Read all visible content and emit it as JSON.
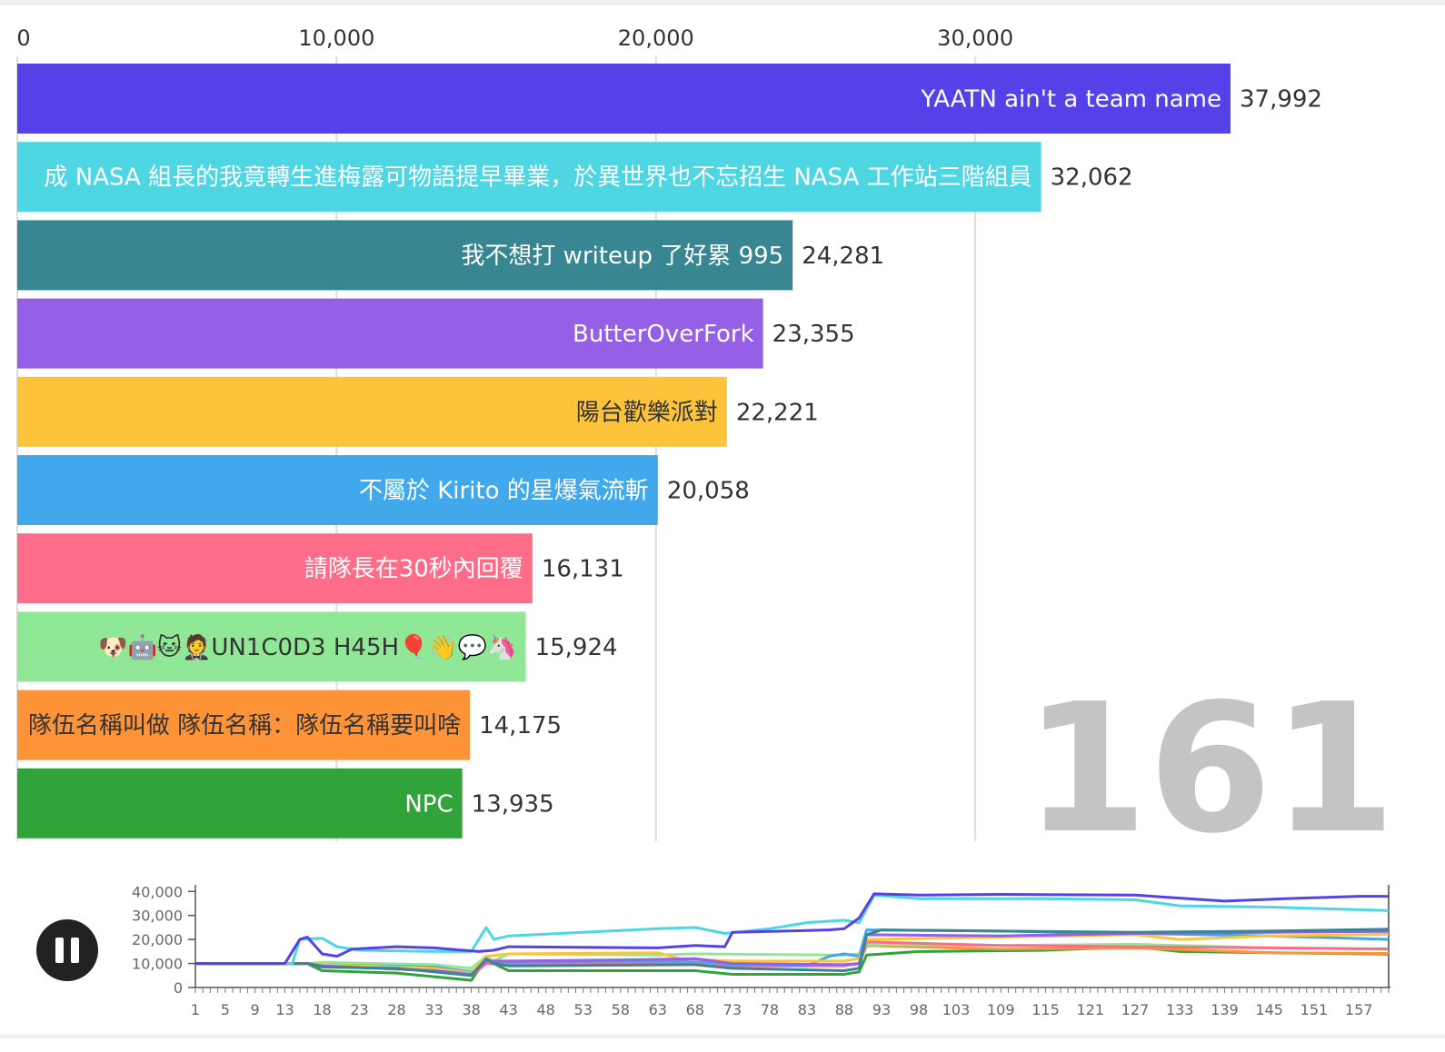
{
  "chart_data": [
    {
      "type": "bar",
      "orientation": "horizontal",
      "xticks": [
        0,
        10000,
        20000,
        30000
      ],
      "xtick_labels": [
        "0",
        "10,000",
        "20,000",
        "30,000"
      ],
      "xlim": [
        0,
        38000
      ],
      "grid": true,
      "frame_label": "161",
      "bars": [
        {
          "name": "YAATN ain't a team name",
          "value": 37992,
          "label": "37,992",
          "color": "#5442e8"
        },
        {
          "name": "成 NASA 組長的我竟轉生進梅露可物語提早畢業，於異世界也不忘招生 NASA 工作站三階組員",
          "value": 32062,
          "label": "32,062",
          "color": "#4fd6e3"
        },
        {
          "name": "我不想打 writeup 了好累 995",
          "value": 24281,
          "label": "24,281",
          "color": "#378692"
        },
        {
          "name": "ButterOverFork",
          "value": 23355,
          "label": "23,355",
          "color": "#955fe6"
        },
        {
          "name": "陽台歡樂派對",
          "value": 22221,
          "label": "22,221",
          "color": "#fdc33b"
        },
        {
          "name": "不屬於 Kirito 的星爆氣流斬",
          "value": 20058,
          "label": "20,058",
          "color": "#41a8ec"
        },
        {
          "name": "請隊長在30秒內回覆",
          "value": 16131,
          "label": "16,131",
          "color": "#fd6c89"
        },
        {
          "name": "🐶🤖🐱🤵UN1C0D3 H45H🎈👋💬🦄",
          "value": 15924,
          "label": "15,924",
          "color": "#90e897"
        },
        {
          "name": "隊伍名稱叫做 隊伍名稱：隊伍名稱要叫啥",
          "value": 14175,
          "label": "14,175",
          "color": "#fe9338"
        },
        {
          "name": "NPC",
          "value": 13935,
          "label": "13,935",
          "color": "#30a43a"
        }
      ]
    },
    {
      "type": "line",
      "yticks": [
        0,
        10000,
        20000,
        30000,
        40000
      ],
      "ytick_labels": [
        "0",
        "10,000",
        "20,000",
        "30,000",
        "40,000"
      ],
      "ylim": [
        0,
        42000
      ],
      "xlim": [
        1,
        161
      ],
      "xticks": [
        1,
        5,
        9,
        13,
        18,
        23,
        28,
        33,
        38,
        43,
        48,
        53,
        58,
        63,
        68,
        73,
        78,
        83,
        88,
        93,
        98,
        103,
        109,
        115,
        121,
        127,
        133,
        139,
        145,
        151,
        157
      ],
      "xtick_labels": [
        "1",
        "5",
        "9",
        "13",
        "18",
        "23",
        "28",
        "33",
        "38",
        "43",
        "48",
        "53",
        "58",
        "63",
        "68",
        "73",
        "78",
        "83",
        "88",
        "93",
        "98",
        "103",
        "109",
        "115",
        "121",
        "127",
        "133",
        "139",
        "145",
        "151",
        "157"
      ],
      "current_frame": 161,
      "series": [
        {
          "color": "#5442e8",
          "points": [
            [
              1,
              10000
            ],
            [
              13,
              10000
            ],
            [
              15,
              20000
            ],
            [
              16,
              21000
            ],
            [
              18,
              14000
            ],
            [
              20,
              13000
            ],
            [
              22,
              16000
            ],
            [
              28,
              17000
            ],
            [
              33,
              16500
            ],
            [
              39,
              15000
            ],
            [
              41,
              15500
            ],
            [
              43,
              17000
            ],
            [
              63,
              16500
            ],
            [
              68,
              17500
            ],
            [
              72,
              17000
            ],
            [
              73,
              23000
            ],
            [
              80,
              23500
            ],
            [
              86,
              24000
            ],
            [
              88,
              24500
            ],
            [
              90,
              29000
            ],
            [
              92,
              39000
            ],
            [
              98,
              38500
            ],
            [
              109,
              38800
            ],
            [
              127,
              38500
            ],
            [
              139,
              36000
            ],
            [
              147,
              37000
            ],
            [
              157,
              38000
            ],
            [
              161,
              38000
            ]
          ]
        },
        {
          "color": "#4fd6e3",
          "points": [
            [
              1,
              10000
            ],
            [
              14,
              10000
            ],
            [
              15,
              20000
            ],
            [
              18,
              20500
            ],
            [
              20,
              17000
            ],
            [
              23,
              15500
            ],
            [
              33,
              15000
            ],
            [
              38,
              15000
            ],
            [
              40,
              25000
            ],
            [
              41,
              20000
            ],
            [
              43,
              21500
            ],
            [
              53,
              23000
            ],
            [
              63,
              24500
            ],
            [
              68,
              25000
            ],
            [
              72,
              22500
            ],
            [
              78,
              24500
            ],
            [
              83,
              27000
            ],
            [
              88,
              28000
            ],
            [
              90,
              27000
            ],
            [
              92,
              38500
            ],
            [
              98,
              37000
            ],
            [
              115,
              37000
            ],
            [
              127,
              36500
            ],
            [
              133,
              34000
            ],
            [
              145,
              33500
            ],
            [
              161,
              32000
            ]
          ]
        },
        {
          "color": "#378692",
          "points": [
            [
              1,
              10000
            ],
            [
              16,
              10000
            ],
            [
              18,
              8500
            ],
            [
              28,
              8000
            ],
            [
              33,
              6500
            ],
            [
              38,
              5000
            ],
            [
              40,
              12000
            ],
            [
              41,
              10000
            ],
            [
              43,
              9000
            ],
            [
              68,
              9500
            ],
            [
              73,
              8000
            ],
            [
              88,
              7000
            ],
            [
              90,
              8000
            ],
            [
              91,
              22000
            ],
            [
              93,
              24000
            ],
            [
              109,
              23500
            ],
            [
              127,
              23000
            ],
            [
              145,
              23500
            ],
            [
              161,
              24300
            ]
          ]
        },
        {
          "color": "#955fe6",
          "points": [
            [
              1,
              10000
            ],
            [
              16,
              10000
            ],
            [
              18,
              9000
            ],
            [
              33,
              7000
            ],
            [
              38,
              5500
            ],
            [
              40,
              11000
            ],
            [
              43,
              11000
            ],
            [
              58,
              11500
            ],
            [
              68,
              12000
            ],
            [
              73,
              10000
            ],
            [
              88,
              9500
            ],
            [
              90,
              10000
            ],
            [
              91,
              22000
            ],
            [
              109,
              21500
            ],
            [
              127,
              22500
            ],
            [
              145,
              23000
            ],
            [
              161,
              23400
            ]
          ]
        },
        {
          "color": "#fdc33b",
          "points": [
            [
              1,
              10000
            ],
            [
              16,
              10000
            ],
            [
              18,
              9500
            ],
            [
              33,
              8000
            ],
            [
              38,
              6000
            ],
            [
              40,
              13000
            ],
            [
              43,
              14000
            ],
            [
              63,
              14500
            ],
            [
              66,
              12000
            ],
            [
              73,
              11000
            ],
            [
              88,
              11000
            ],
            [
              90,
              12000
            ],
            [
              91,
              20000
            ],
            [
              109,
              21000
            ],
            [
              127,
              22000
            ],
            [
              133,
              20000
            ],
            [
              145,
              21500
            ],
            [
              161,
              22200
            ]
          ]
        },
        {
          "color": "#41a8ec",
          "points": [
            [
              1,
              10000
            ],
            [
              16,
              10000
            ],
            [
              18,
              9500
            ],
            [
              33,
              8500
            ],
            [
              38,
              6500
            ],
            [
              40,
              11000
            ],
            [
              43,
              10500
            ],
            [
              68,
              11000
            ],
            [
              73,
              9500
            ],
            [
              83,
              9000
            ],
            [
              86,
              13000
            ],
            [
              88,
              14000
            ],
            [
              90,
              13000
            ],
            [
              91,
              24000
            ],
            [
              109,
              23500
            ],
            [
              127,
              22500
            ],
            [
              145,
              21500
            ],
            [
              161,
              20000
            ]
          ]
        },
        {
          "color": "#fd6c89",
          "points": [
            [
              1,
              10000
            ],
            [
              16,
              10000
            ],
            [
              18,
              9000
            ],
            [
              33,
              7000
            ],
            [
              38,
              5000
            ],
            [
              40,
              10000
            ],
            [
              43,
              9500
            ],
            [
              68,
              10000
            ],
            [
              73,
              9000
            ],
            [
              88,
              9000
            ],
            [
              90,
              10000
            ],
            [
              91,
              19000
            ],
            [
              109,
              17500
            ],
            [
              127,
              17000
            ],
            [
              145,
              16500
            ],
            [
              161,
              16100
            ]
          ]
        },
        {
          "color": "#90e897",
          "points": [
            [
              1,
              10000
            ],
            [
              16,
              10000
            ],
            [
              18,
              10500
            ],
            [
              33,
              9500
            ],
            [
              38,
              8000
            ],
            [
              40,
              13000
            ],
            [
              41,
              11000
            ],
            [
              43,
              14000
            ],
            [
              63,
              13500
            ],
            [
              68,
              14000
            ],
            [
              88,
              13500
            ],
            [
              90,
              14000
            ],
            [
              91,
              18000
            ],
            [
              109,
              17500
            ],
            [
              127,
              18000
            ],
            [
              145,
              16500
            ],
            [
              161,
              15900
            ]
          ]
        },
        {
          "color": "#fe9338",
          "points": [
            [
              1,
              10000
            ],
            [
              16,
              10000
            ],
            [
              18,
              9000
            ],
            [
              33,
              7500
            ],
            [
              38,
              6000
            ],
            [
              40,
              11000
            ],
            [
              43,
              10000
            ],
            [
              68,
              10500
            ],
            [
              73,
              9500
            ],
            [
              88,
              9500
            ],
            [
              90,
              10000
            ],
            [
              91,
              17500
            ],
            [
              109,
              16000
            ],
            [
              127,
              16500
            ],
            [
              145,
              14500
            ],
            [
              161,
              14200
            ]
          ]
        },
        {
          "color": "#30a43a",
          "points": [
            [
              1,
              10000
            ],
            [
              16,
              10000
            ],
            [
              18,
              7000
            ],
            [
              28,
              6000
            ],
            [
              33,
              4500
            ],
            [
              38,
              3000
            ],
            [
              40,
              12000
            ],
            [
              41,
              10000
            ],
            [
              43,
              7000
            ],
            [
              68,
              7000
            ],
            [
              73,
              5500
            ],
            [
              88,
              5500
            ],
            [
              90,
              6500
            ],
            [
              91,
              13500
            ],
            [
              98,
              15000
            ],
            [
              115,
              15500
            ],
            [
              127,
              17000
            ],
            [
              133,
              15000
            ],
            [
              145,
              14500
            ],
            [
              161,
              13900
            ]
          ]
        }
      ]
    }
  ]
}
